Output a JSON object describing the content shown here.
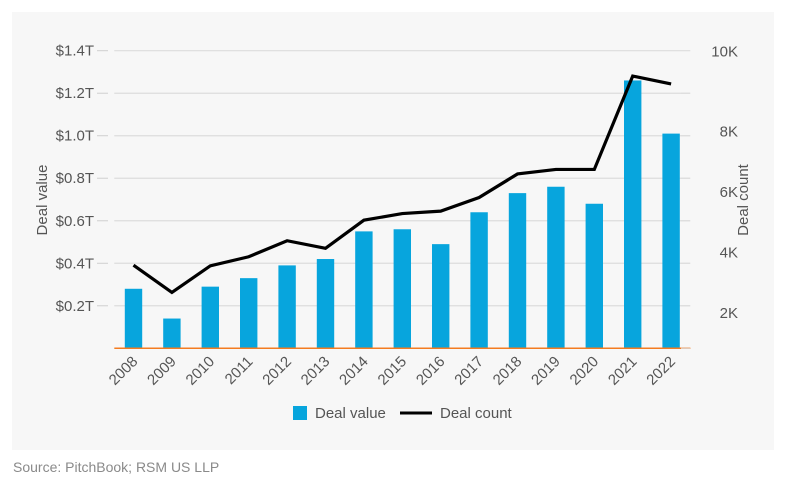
{
  "chart_data": {
    "type": "bar+line",
    "categories": [
      "2008",
      "2009",
      "2010",
      "2011",
      "2012",
      "2013",
      "2014",
      "2015",
      "2016",
      "2017",
      "2018",
      "2019",
      "2020",
      "2021",
      "2022"
    ],
    "series": [
      {
        "name": "Deal value",
        "type": "bar",
        "axis": "left",
        "unit": "$T",
        "color": "#07a5dd",
        "values": [
          0.28,
          0.14,
          0.29,
          0.33,
          0.39,
          0.42,
          0.55,
          0.56,
          0.49,
          0.64,
          0.73,
          0.76,
          0.68,
          1.26,
          1.01
        ]
      },
      {
        "name": "Deal count",
        "type": "line",
        "axis": "right",
        "color": "#000000",
        "values": [
          3580,
          2680,
          3560,
          3860,
          4390,
          4140,
          5070,
          5290,
          5370,
          5820,
          6600,
          6750,
          6750,
          9840,
          9580
        ]
      }
    ],
    "ylabel": "Deal value",
    "y2label": "Deal count",
    "ylim": [
      0,
      1.4
    ],
    "y2lim": [
      830,
      10680
    ],
    "yticks": [
      {
        "v": 0.2,
        "label": "$0.2T"
      },
      {
        "v": 0.4,
        "label": "$0.4T"
      },
      {
        "v": 0.6,
        "label": "$0.6T"
      },
      {
        "v": 0.8,
        "label": "$0.8T"
      },
      {
        "v": 1.0,
        "label": "$1.0T"
      },
      {
        "v": 1.2,
        "label": "$1.2T"
      },
      {
        "v": 1.4,
        "label": "$1.4T"
      }
    ],
    "y2ticks": [
      {
        "v": 2000,
        "label": "2K"
      },
      {
        "v": 4000,
        "label": "4K"
      },
      {
        "v": 6000,
        "label": "6K"
      },
      {
        "v": 8000,
        "label": "8K"
      },
      {
        "v": 10000,
        "label": "10K"
      }
    ],
    "grid": true,
    "legend": "bottom",
    "baseline_color": "#f47c20"
  },
  "source": "Source: PitchBook; RSM US LLP"
}
